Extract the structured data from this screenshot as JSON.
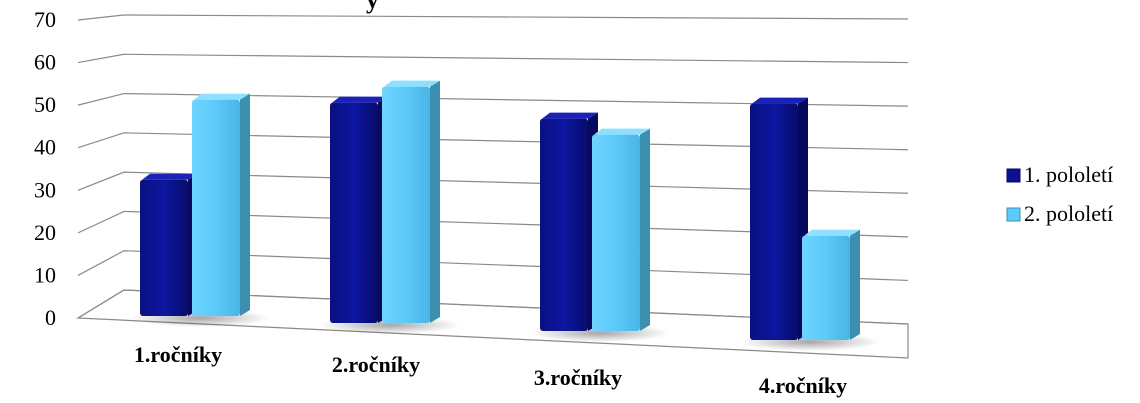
{
  "chart_data": {
    "type": "bar",
    "title_fragment": "y",
    "categories": [
      "1.ročníky",
      "2.ročníky",
      "3.ročníky",
      "4.ročníky"
    ],
    "series": [
      {
        "name": "1. pololetí",
        "values": [
          35,
          56,
          54,
          60
        ]
      },
      {
        "name": "2. pololetí",
        "values": [
          55,
          60,
          50,
          27
        ]
      }
    ],
    "ylim": [
      0,
      70
    ],
    "yticks": [
      "0",
      "10",
      "20",
      "30",
      "40",
      "50",
      "60",
      "70"
    ],
    "grid": true,
    "legend_position": "right",
    "colors": {
      "series1": "#0b128f",
      "series1_dark": "#050a5e",
      "series2": "#5ccbfb",
      "series2_dark": "#3d8fb0"
    }
  }
}
